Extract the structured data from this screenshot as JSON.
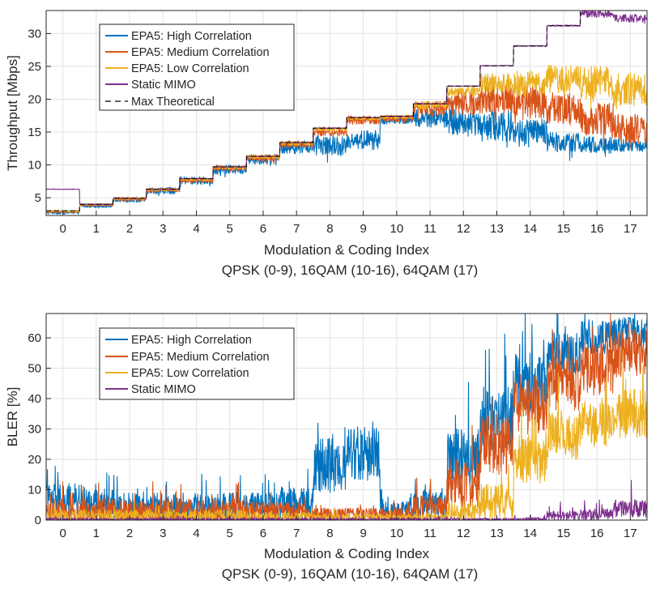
{
  "chart_data": [
    {
      "type": "line",
      "xlabel": "Modulation & Coding Index",
      "subtitle": "QPSK (0-9), 16QAM (10-16), 64QAM (17)",
      "ylabel": "Throughput [Mbps]",
      "xlim": [
        -0.5,
        17.5
      ],
      "ylim": [
        2.3,
        33.5
      ],
      "xticks": [
        0,
        1,
        2,
        3,
        4,
        5,
        6,
        7,
        8,
        9,
        10,
        11,
        12,
        13,
        14,
        15,
        16,
        17
      ],
      "yticks": [
        5,
        10,
        15,
        20,
        25,
        30
      ],
      "grid": true,
      "legend_position": "top-left",
      "mcs_max_theoretical": [
        3.0,
        4.0,
        4.9,
        6.3,
        7.9,
        9.7,
        11.3,
        13.4,
        15.6,
        17.2,
        17.4,
        19.3,
        22.0,
        25.1,
        28.1,
        31.2,
        33.6,
        33.6
      ],
      "series": [
        {
          "name": "EPA5: High Correlation",
          "color": "#0072BD",
          "mean": [
            2.8,
            3.8,
            4.7,
            6.1,
            7.6,
            9.3,
            10.9,
            12.7,
            13.0,
            13.8,
            16.8,
            17.2,
            16.5,
            16.0,
            15.0,
            13.5,
            13.0,
            13.0
          ],
          "spread": [
            0.3,
            0.3,
            0.4,
            0.5,
            0.6,
            0.7,
            0.8,
            1.0,
            1.5,
            1.5,
            0.6,
            1.5,
            2.0,
            2.5,
            2.0,
            1.5,
            1.3,
            1.0
          ]
        },
        {
          "name": "EPA5: Medium Correlation",
          "color": "#D95319",
          "mean": [
            2.9,
            3.9,
            4.8,
            6.2,
            7.7,
            9.5,
            11.1,
            13.1,
            15.1,
            16.8,
            17.1,
            18.5,
            19.5,
            20.0,
            19.5,
            18.5,
            17.0,
            15.5
          ],
          "spread": [
            0.2,
            0.2,
            0.3,
            0.3,
            0.4,
            0.4,
            0.5,
            0.5,
            0.7,
            0.7,
            0.5,
            1.2,
            2.0,
            2.2,
            2.5,
            2.5,
            2.5,
            2.2
          ]
        },
        {
          "name": "EPA5: Low Correlation",
          "color": "#EDB120",
          "mean": [
            2.95,
            3.95,
            4.85,
            6.25,
            7.8,
            9.6,
            11.2,
            13.3,
            15.4,
            17.1,
            17.3,
            19.1,
            21.2,
            22.5,
            22.5,
            23.0,
            22.5,
            21.5
          ],
          "spread": [
            0.1,
            0.1,
            0.2,
            0.2,
            0.2,
            0.2,
            0.3,
            0.3,
            0.3,
            0.3,
            0.3,
            0.6,
            0.8,
            1.5,
            2.0,
            2.2,
            2.5,
            2.5
          ]
        },
        {
          "name": "Static MIMO",
          "color": "#7E2F8E",
          "mean": [
            6.3,
            4.0,
            4.9,
            6.3,
            7.9,
            9.7,
            11.3,
            13.4,
            15.6,
            17.2,
            17.4,
            19.3,
            22.0,
            25.1,
            28.1,
            31.2,
            33.0,
            32.3
          ],
          "spread": [
            0.05,
            0.05,
            0.05,
            0.05,
            0.05,
            0.05,
            0.05,
            0.05,
            0.05,
            0.05,
            0.05,
            0.05,
            0.05,
            0.05,
            0.1,
            0.1,
            0.6,
            0.6
          ]
        },
        {
          "name": "Max Theoretical",
          "color": "#000000",
          "dashed": true
        }
      ]
    },
    {
      "type": "line",
      "xlabel": "Modulation & Coding Index",
      "subtitle": "QPSK (0-9), 16QAM (10-16), 64QAM (17)",
      "ylabel": "BLER [%]",
      "xlim": [
        -0.5,
        17.5
      ],
      "ylim": [
        0,
        68
      ],
      "xticks": [
        0,
        1,
        2,
        3,
        4,
        5,
        6,
        7,
        8,
        9,
        10,
        11,
        12,
        13,
        14,
        15,
        16,
        17
      ],
      "yticks": [
        0,
        10,
        20,
        30,
        40,
        50,
        60
      ],
      "grid": true,
      "legend_position": "top-left",
      "series": [
        {
          "name": "EPA5: High Correlation",
          "color": "#0072BD",
          "mean": [
            6,
            5,
            4,
            4,
            4,
            4,
            4,
            5,
            18,
            22,
            3,
            5,
            20,
            33,
            45,
            55,
            60,
            62
          ],
          "spread": [
            6,
            5,
            5,
            5,
            5,
            5,
            5,
            6,
            9,
            9,
            3,
            5,
            10,
            11,
            10,
            7,
            6,
            5
          ]
        },
        {
          "name": "EPA5: Medium Correlation",
          "color": "#D95319",
          "mean": [
            3,
            3,
            3,
            3,
            3,
            3,
            3,
            3,
            2,
            2,
            2,
            4,
            12,
            25,
            38,
            45,
            50,
            55
          ],
          "spread": [
            4,
            4,
            4,
            4,
            4,
            4,
            3,
            3,
            2,
            2,
            2,
            4,
            8,
            10,
            10,
            9,
            9,
            8
          ]
        },
        {
          "name": "EPA5: Low Correlation",
          "color": "#EDB120",
          "mean": [
            1.5,
            1.5,
            1.5,
            1.5,
            1.5,
            1.5,
            1.2,
            1.2,
            1,
            1,
            1,
            1,
            3,
            6,
            20,
            28,
            32,
            35
          ],
          "spread": [
            2,
            2,
            2,
            2,
            2,
            2,
            1.5,
            1.5,
            1,
            1,
            1,
            1,
            3,
            6,
            8,
            8,
            8,
            8
          ]
        },
        {
          "name": "Static MIMO",
          "color": "#7E2F8E",
          "mean": [
            0.2,
            0.2,
            0.2,
            0.2,
            0.2,
            0.2,
            0.2,
            0.2,
            0.2,
            0.2,
            0.2,
            0.2,
            0.2,
            0.2,
            0.3,
            1.5,
            2,
            4
          ],
          "spread": [
            0.5,
            0.5,
            0.5,
            0.5,
            0.5,
            0.5,
            0.5,
            0.5,
            0.5,
            0.5,
            0.5,
            0.5,
            0.5,
            0.5,
            0.6,
            1.5,
            2,
            3
          ]
        }
      ]
    }
  ]
}
